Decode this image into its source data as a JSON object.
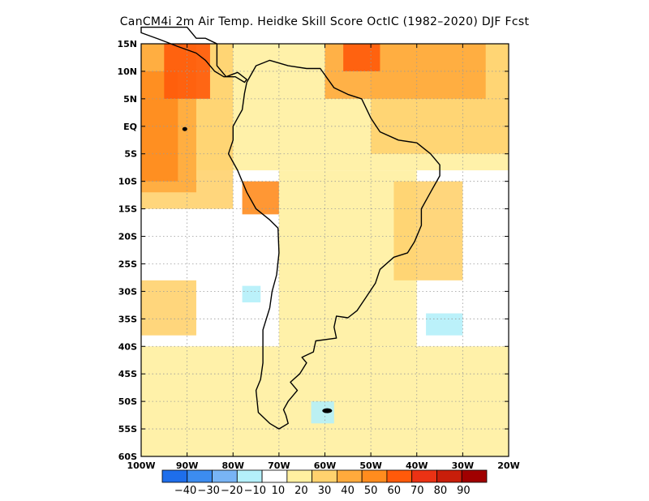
{
  "title": "CanCM4i  2m Air Temp. Heidke Skill Score OctIC (1982–2020) DJF Fcst",
  "map": {
    "lon_range": [
      -100,
      -20
    ],
    "lat_range": [
      -60,
      15
    ],
    "lat_tick_values": [
      15,
      10,
      5,
      0,
      -5,
      -10,
      -15,
      -20,
      -25,
      -30,
      -35,
      -40,
      -45,
      -50,
      -55,
      -60
    ],
    "lat_tick_labels": [
      "15N",
      "10N",
      "5N",
      "EQ",
      "5S",
      "10S",
      "15S",
      "20S",
      "25S",
      "30S",
      "35S",
      "40S",
      "45S",
      "50S",
      "55S",
      "60S"
    ],
    "lon_tick_values": [
      -100,
      -90,
      -80,
      -70,
      -60,
      -50,
      -40,
      -30,
      -20
    ],
    "lon_tick_labels": [
      "100W",
      "90W",
      "80W",
      "70W",
      "60W",
      "50W",
      "40W",
      "30W",
      "20W"
    ],
    "grid": "dotted",
    "colors": {
      "land_outline": "#000000",
      "grid": "#9a9a9a"
    }
  },
  "colorbar": {
    "colors": [
      "#1e6eeb",
      "#3c8cf0",
      "#78b4f5",
      "#b4f0fa",
      "#ffffff",
      "#fff0a0",
      "#ffd26e",
      "#ffaa3c",
      "#ff8c1e",
      "#ff5a0a",
      "#eb3214",
      "#c81e0a",
      "#a00000"
    ],
    "labels": [
      "−40",
      "−30",
      "−20",
      "−10",
      "10",
      "20",
      "30",
      "40",
      "50",
      "60",
      "70",
      "80",
      "90"
    ],
    "label_step": 1
  },
  "skill_regions": [
    {
      "level": 10,
      "lon": [
        -100,
        -20
      ],
      "lat": [
        -60,
        15
      ]
    },
    {
      "level": 20,
      "lon": [
        -100,
        -20
      ],
      "lat": [
        -8,
        15
      ]
    },
    {
      "level": 20,
      "lon": [
        -70,
        -40
      ],
      "lat": [
        -40,
        -8
      ]
    },
    {
      "level": 30,
      "lon": [
        -100,
        -80
      ],
      "lat": [
        -15,
        15
      ]
    },
    {
      "level": 30,
      "lon": [
        -50,
        -20
      ],
      "lat": [
        -5,
        15
      ]
    },
    {
      "level": 40,
      "lon": [
        -100,
        -88
      ],
      "lat": [
        -12,
        15
      ]
    },
    {
      "level": 40,
      "lon": [
        -60,
        -25
      ],
      "lat": [
        5,
        15
      ]
    },
    {
      "level": 50,
      "lon": [
        -100,
        -92
      ],
      "lat": [
        -10,
        10
      ]
    },
    {
      "level": 60,
      "lon": [
        -95,
        -85
      ],
      "lat": [
        5,
        15
      ]
    },
    {
      "level": 60,
      "lon": [
        -56,
        -48
      ],
      "lat": [
        10,
        15
      ]
    },
    {
      "level": 50,
      "lon": [
        -78,
        -70
      ],
      "lat": [
        -16,
        -10
      ]
    },
    {
      "level": 30,
      "lon": [
        -100,
        -88
      ],
      "lat": [
        -38,
        -28
      ]
    },
    {
      "level": 30,
      "lon": [
        -45,
        -30
      ],
      "lat": [
        -28,
        -10
      ]
    },
    {
      "level": 20,
      "lon": [
        -100,
        -20
      ],
      "lat": [
        -60,
        -40
      ]
    },
    {
      "level": -10,
      "lon": [
        -78,
        -74
      ],
      "lat": [
        -32,
        -29
      ]
    },
    {
      "level": -10,
      "lon": [
        -38,
        -30
      ],
      "lat": [
        -38,
        -34
      ]
    },
    {
      "level": -10,
      "lon": [
        -63,
        -58
      ],
      "lat": [
        -54,
        -50
      ]
    }
  ]
}
